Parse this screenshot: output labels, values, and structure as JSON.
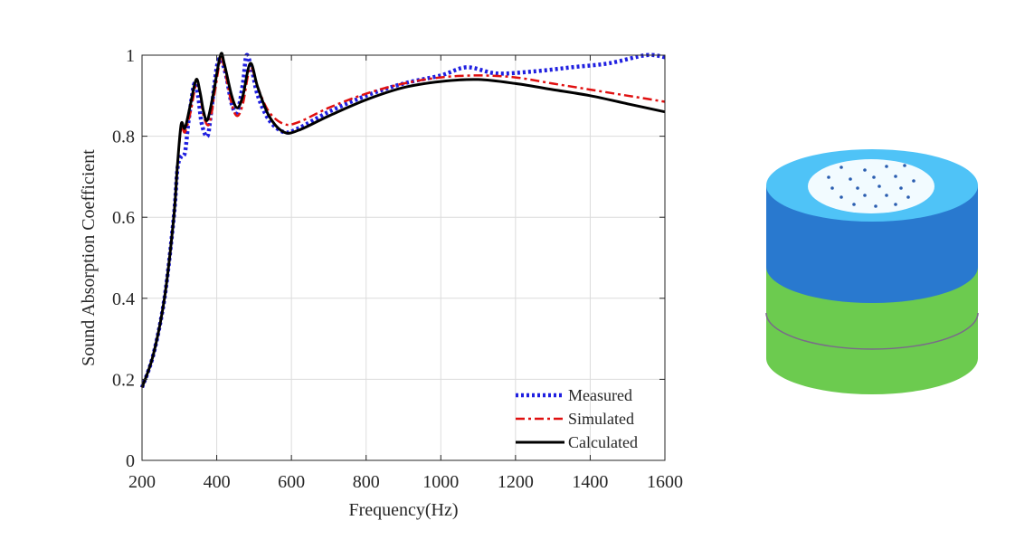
{
  "chart_data": {
    "type": "line",
    "xlabel": "Frequency(Hz)",
    "ylabel": "Sound Absorption Coefficient",
    "xlim": [
      200,
      1600
    ],
    "ylim": [
      0,
      1
    ],
    "xticks": [
      200,
      400,
      600,
      800,
      1000,
      1200,
      1400,
      1600
    ],
    "yticks": [
      0,
      0.2,
      0.4,
      0.6,
      0.8,
      1
    ],
    "grid": true,
    "legend_position": "bottom-right",
    "series": [
      {
        "name": "Measured",
        "color": "#1f1fe0",
        "dash": "dotted",
        "points": [
          [
            200,
            0.18
          ],
          [
            230,
            0.26
          ],
          [
            260,
            0.4
          ],
          [
            285,
            0.6
          ],
          [
            295,
            0.72
          ],
          [
            305,
            0.75
          ],
          [
            315,
            0.76
          ],
          [
            325,
            0.84
          ],
          [
            340,
            0.93
          ],
          [
            350,
            0.9
          ],
          [
            360,
            0.83
          ],
          [
            375,
            0.8
          ],
          [
            385,
            0.86
          ],
          [
            400,
            0.97
          ],
          [
            410,
            0.99
          ],
          [
            425,
            0.95
          ],
          [
            440,
            0.88
          ],
          [
            455,
            0.86
          ],
          [
            470,
            0.93
          ],
          [
            480,
            1.0
          ],
          [
            495,
            0.96
          ],
          [
            510,
            0.9
          ],
          [
            540,
            0.84
          ],
          [
            580,
            0.81
          ],
          [
            620,
            0.82
          ],
          [
            700,
            0.86
          ],
          [
            800,
            0.9
          ],
          [
            900,
            0.93
          ],
          [
            1000,
            0.95
          ],
          [
            1070,
            0.97
          ],
          [
            1150,
            0.955
          ],
          [
            1250,
            0.96
          ],
          [
            1350,
            0.97
          ],
          [
            1450,
            0.98
          ],
          [
            1550,
            1.0
          ],
          [
            1600,
            0.995
          ]
        ]
      },
      {
        "name": "Simulated",
        "color": "#e01010",
        "dash": "dashdot",
        "points": [
          [
            200,
            0.18
          ],
          [
            230,
            0.26
          ],
          [
            260,
            0.4
          ],
          [
            285,
            0.6
          ],
          [
            295,
            0.73
          ],
          [
            305,
            0.82
          ],
          [
            315,
            0.81
          ],
          [
            330,
            0.86
          ],
          [
            345,
            0.93
          ],
          [
            355,
            0.91
          ],
          [
            365,
            0.85
          ],
          [
            380,
            0.83
          ],
          [
            395,
            0.91
          ],
          [
            410,
            0.99
          ],
          [
            420,
            0.97
          ],
          [
            440,
            0.88
          ],
          [
            455,
            0.85
          ],
          [
            470,
            0.88
          ],
          [
            490,
            0.97
          ],
          [
            510,
            0.92
          ],
          [
            540,
            0.86
          ],
          [
            580,
            0.83
          ],
          [
            620,
            0.835
          ],
          [
            700,
            0.87
          ],
          [
            800,
            0.905
          ],
          [
            900,
            0.93
          ],
          [
            1000,
            0.945
          ],
          [
            1100,
            0.95
          ],
          [
            1200,
            0.945
          ],
          [
            1300,
            0.93
          ],
          [
            1400,
            0.915
          ],
          [
            1500,
            0.9
          ],
          [
            1600,
            0.885
          ]
        ]
      },
      {
        "name": "Calculated",
        "color": "#000000",
        "dash": "solid",
        "points": [
          [
            200,
            0.18
          ],
          [
            230,
            0.26
          ],
          [
            260,
            0.4
          ],
          [
            285,
            0.6
          ],
          [
            295,
            0.73
          ],
          [
            305,
            0.83
          ],
          [
            315,
            0.82
          ],
          [
            330,
            0.88
          ],
          [
            345,
            0.94
          ],
          [
            355,
            0.91
          ],
          [
            365,
            0.86
          ],
          [
            375,
            0.84
          ],
          [
            390,
            0.9
          ],
          [
            410,
            1.0
          ],
          [
            420,
            0.98
          ],
          [
            440,
            0.9
          ],
          [
            455,
            0.87
          ],
          [
            470,
            0.9
          ],
          [
            490,
            0.98
          ],
          [
            510,
            0.92
          ],
          [
            540,
            0.85
          ],
          [
            580,
            0.81
          ],
          [
            620,
            0.815
          ],
          [
            700,
            0.85
          ],
          [
            800,
            0.89
          ],
          [
            900,
            0.92
          ],
          [
            1000,
            0.935
          ],
          [
            1100,
            0.94
          ],
          [
            1200,
            0.93
          ],
          [
            1300,
            0.915
          ],
          [
            1400,
            0.9
          ],
          [
            1500,
            0.88
          ],
          [
            1600,
            0.86
          ]
        ]
      }
    ]
  },
  "illustration": {
    "top_color": "#4fc3f7",
    "body_upper_color": "#2979cf",
    "body_lower_color": "#6ccb4f",
    "perforated_plate_color": "#f2fbff",
    "hole_color": "#2a5db0"
  }
}
